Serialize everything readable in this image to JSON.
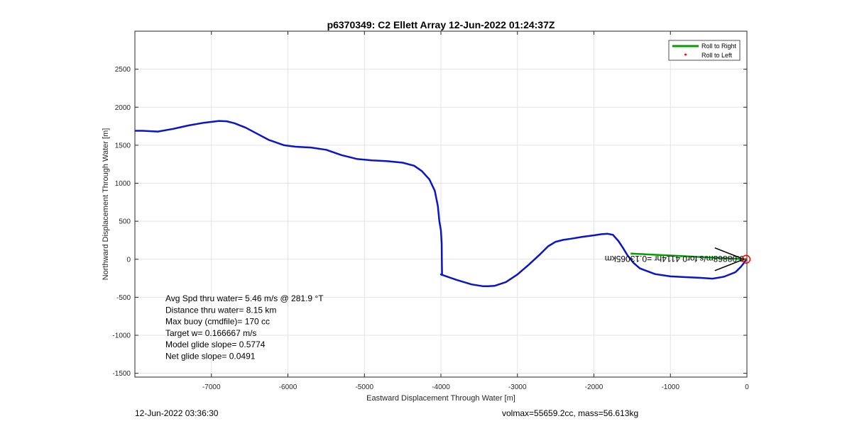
{
  "chart_data": {
    "type": "line",
    "title": "p6370349: C2 Ellett Array 12-Jun-2022 01:24:37Z",
    "xlabel": "Eastward Displacement Through Water [m]",
    "ylabel": "Northward Displacement Through Water [m]",
    "xlim": [
      -8000,
      0
    ],
    "ylim": [
      -1550,
      3000
    ],
    "xticks": [
      -7000,
      -6000,
      -5000,
      -4000,
      -3000,
      -2000,
      -1000,
      0
    ],
    "yticks": [
      -1500,
      -1000,
      -500,
      0,
      500,
      1000,
      1500,
      2000,
      2500
    ],
    "grid": true,
    "legend_position": "top-right",
    "legend": [
      {
        "label": "Roll to Right",
        "color": "#00a000",
        "marker": "line"
      },
      {
        "label": "Roll to Left",
        "color": "#ff0000",
        "marker": "dot"
      }
    ],
    "series": [
      {
        "color": "#0a14c8",
        "x": [
          -8000,
          -7900,
          -7700,
          -7500,
          -7300,
          -7100,
          -6900,
          -6800,
          -6700,
          -6550,
          -6400,
          -6250,
          -6050,
          -5900,
          -5700,
          -5500,
          -5300,
          -5100,
          -4900,
          -4700,
          -4500,
          -4350,
          -4250,
          -4150,
          -4080,
          -4040,
          -4020,
          -4000,
          -3990,
          -3988,
          -3985,
          -3990,
          -4000,
          -3800,
          -3600,
          -3450,
          -3380,
          -3300,
          -3150,
          -3000,
          -2850,
          -2700,
          -2600,
          -2500,
          -2400,
          -2300,
          -2150,
          -2000,
          -1900,
          -1820,
          -1750,
          -1680,
          -1620,
          -1560,
          -1480,
          -1400,
          -1200,
          -1000,
          -800,
          -600,
          -450,
          -300,
          -150,
          -80,
          -40,
          -20,
          -10
        ],
        "y": [
          1690,
          1690,
          1680,
          1715,
          1760,
          1795,
          1820,
          1815,
          1790,
          1730,
          1650,
          1570,
          1500,
          1480,
          1470,
          1440,
          1370,
          1320,
          1300,
          1290,
          1270,
          1230,
          1160,
          1050,
          900,
          700,
          500,
          380,
          200,
          0,
          -200,
          -200,
          -200,
          -270,
          -330,
          -355,
          -355,
          -350,
          -300,
          -200,
          -70,
          70,
          170,
          230,
          255,
          270,
          295,
          315,
          330,
          335,
          320,
          240,
          150,
          50,
          -50,
          -120,
          -195,
          -225,
          -235,
          -245,
          -255,
          -230,
          -170,
          -100,
          -50,
          -20,
          0
        ]
      }
    ],
    "roll_right_segment": {
      "x": [
        -1520,
        -10
      ],
      "y": [
        75,
        0
      ]
    },
    "current_arrow": {
      "x": [
        -40,
        -420
      ],
      "y": [
        0,
        150
      ]
    },
    "end_marker": {
      "x": -10,
      "y": 0
    },
    "current_label": "0.08868m/s for0.4114hr =0.13065km",
    "annotations": [
      "Avg Spd thru water=  5.46 m/s @ 281.9 °T",
      "Distance thru water=  8.15 km",
      "Max buoy (cmdfile)= 170 cc",
      "Target w= 0.166667 m/s",
      "Model glide slope= 0.5774",
      "Net glide slope= 0.0491"
    ]
  },
  "footer": {
    "left": "12-Jun-2022 03:36:30",
    "right": "volmax=55659.2cc, mass=56.613kg"
  }
}
